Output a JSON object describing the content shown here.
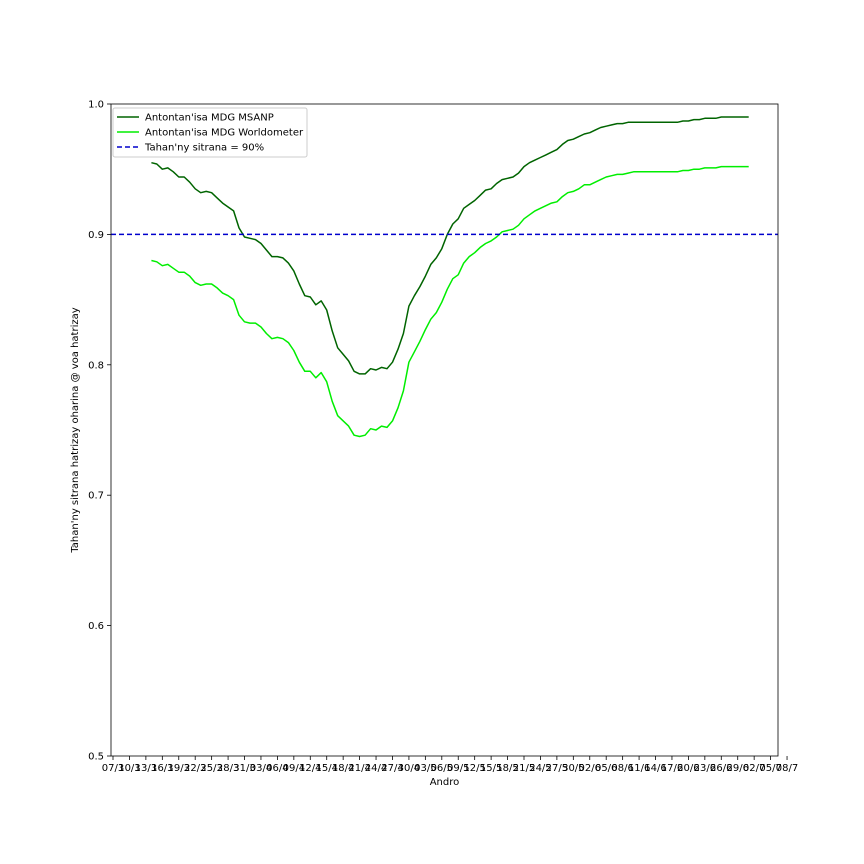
{
  "chart_data": {
    "type": "line",
    "xlabel": "Andro",
    "ylabel": "Tahan'ny sitrana hatrizay oharina @ voa hatrizay",
    "ylim": [
      0.5,
      1.0
    ],
    "yticks": [
      "0.5",
      "0.6",
      "0.7",
      "0.8",
      "0.9",
      "1.0"
    ],
    "xticks": [
      "07/3",
      "10/3",
      "13/3",
      "16/3",
      "19/3",
      "22/3",
      "25/3",
      "28/3",
      "31/3",
      "03/4",
      "06/4",
      "09/4",
      "12/4",
      "15/4",
      "18/4",
      "21/4",
      "24/4",
      "27/4",
      "30/4",
      "03/5",
      "06/5",
      "09/5",
      "12/5",
      "15/5",
      "18/5",
      "21/5",
      "24/5",
      "27/5",
      "30/5",
      "02/6",
      "05/6",
      "08/6",
      "11/6",
      "14/6",
      "17/6",
      "20/6",
      "23/6",
      "26/6",
      "29/6",
      "02/7",
      "05/7",
      "08/7"
    ],
    "x_start": "07/3",
    "legend_position": "upper left",
    "series": [
      {
        "name": "Antontan'isa MDG MSANP",
        "color": "#006400",
        "style": "solid",
        "x_start_index": 7,
        "values": [
          0.955,
          0.954,
          0.95,
          0.951,
          0.948,
          0.944,
          0.944,
          0.94,
          0.935,
          0.932,
          0.933,
          0.932,
          0.928,
          0.924,
          0.921,
          0.918,
          0.905,
          0.898,
          0.897,
          0.896,
          0.893,
          0.888,
          0.883,
          0.883,
          0.882,
          0.878,
          0.872,
          0.862,
          0.853,
          0.852,
          0.846,
          0.849,
          0.842,
          0.826,
          0.813,
          0.808,
          0.803,
          0.795,
          0.793,
          0.793,
          0.797,
          0.796,
          0.798,
          0.797,
          0.802,
          0.812,
          0.824,
          0.845,
          0.853,
          0.86,
          0.868,
          0.877,
          0.882,
          0.889,
          0.9,
          0.908,
          0.912,
          0.92,
          0.923,
          0.926,
          0.93,
          0.934,
          0.935,
          0.939,
          0.942,
          0.943,
          0.944,
          0.947,
          0.952,
          0.955,
          0.957,
          0.959,
          0.961,
          0.963,
          0.965,
          0.969,
          0.972,
          0.973,
          0.975,
          0.977,
          0.978,
          0.98,
          0.982,
          0.983,
          0.984,
          0.985,
          0.985,
          0.986,
          0.986,
          0.986,
          0.986,
          0.986,
          0.986,
          0.986,
          0.986,
          0.986,
          0.986,
          0.987,
          0.987,
          0.988,
          0.988,
          0.989,
          0.989,
          0.989,
          0.99,
          0.99,
          0.99,
          0.99,
          0.99,
          0.99
        ]
      },
      {
        "name": "Antontan'isa MDG Worldometer",
        "color": "#00ee00",
        "style": "solid",
        "x_start_index": 7,
        "values": [
          0.88,
          0.879,
          0.876,
          0.877,
          0.874,
          0.871,
          0.871,
          0.868,
          0.863,
          0.861,
          0.862,
          0.862,
          0.859,
          0.855,
          0.853,
          0.85,
          0.838,
          0.833,
          0.832,
          0.832,
          0.829,
          0.824,
          0.82,
          0.821,
          0.82,
          0.817,
          0.811,
          0.802,
          0.795,
          0.795,
          0.79,
          0.794,
          0.787,
          0.772,
          0.761,
          0.757,
          0.753,
          0.746,
          0.745,
          0.746,
          0.751,
          0.75,
          0.753,
          0.752,
          0.757,
          0.767,
          0.78,
          0.802,
          0.81,
          0.818,
          0.827,
          0.835,
          0.84,
          0.848,
          0.858,
          0.866,
          0.869,
          0.878,
          0.883,
          0.886,
          0.89,
          0.893,
          0.895,
          0.898,
          0.902,
          0.903,
          0.904,
          0.907,
          0.912,
          0.915,
          0.918,
          0.92,
          0.922,
          0.924,
          0.925,
          0.929,
          0.932,
          0.933,
          0.935,
          0.938,
          0.938,
          0.94,
          0.942,
          0.944,
          0.945,
          0.946,
          0.946,
          0.947,
          0.948,
          0.948,
          0.948,
          0.948,
          0.948,
          0.948,
          0.948,
          0.948,
          0.948,
          0.949,
          0.949,
          0.95,
          0.95,
          0.951,
          0.951,
          0.951,
          0.952,
          0.952,
          0.952,
          0.952,
          0.952,
          0.952
        ]
      },
      {
        "name": "Tahan'ny sitrana = 90%",
        "color": "#0000cc",
        "style": "dashed",
        "y": 0.9
      }
    ]
  }
}
